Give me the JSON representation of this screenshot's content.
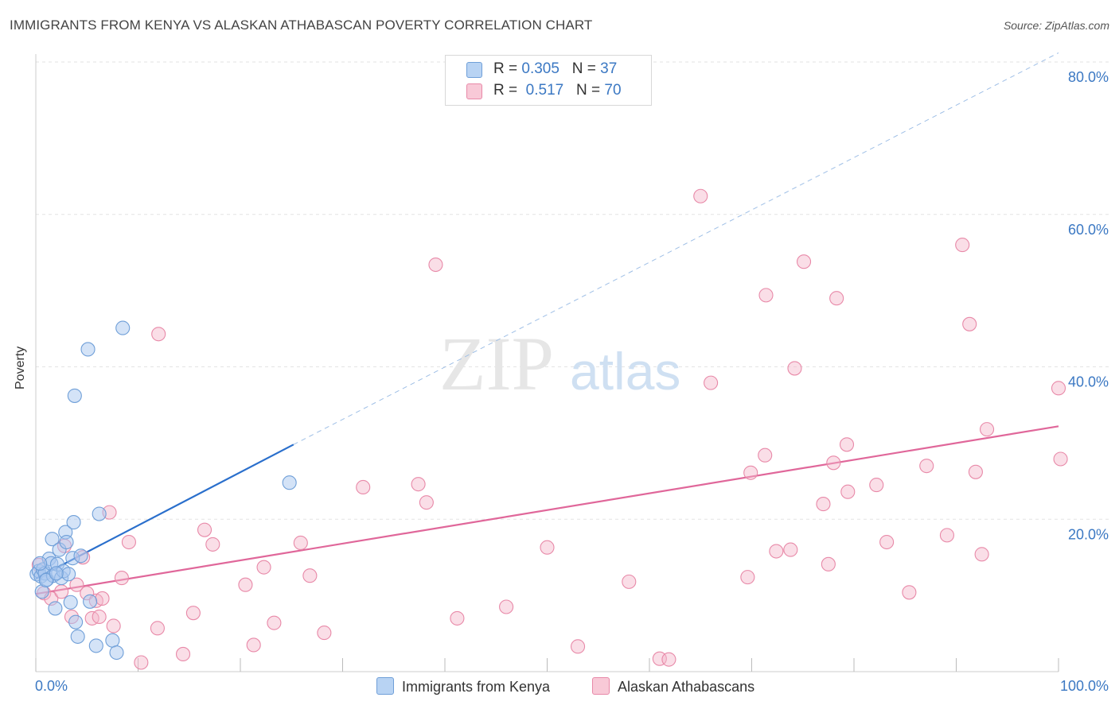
{
  "title": "IMMIGRANTS FROM KENYA VS ALASKAN ATHABASCAN POVERTY CORRELATION CHART",
  "source": "Source: ZipAtlas.com",
  "watermark": {
    "zip": "ZIP",
    "atlas": "atlas"
  },
  "colors": {
    "blue_fill": "#a9c8f0",
    "blue_stroke": "#6f9fd8",
    "blue_line": "#2a6fcc",
    "pink_fill": "#f5b6c9",
    "pink_stroke": "#e889a8",
    "pink_line": "#e0679a",
    "axis_label": "#3b78c3",
    "grid": "#e3e3e3"
  },
  "legend": {
    "rows": [
      {
        "r_label": "R = ",
        "r_value": "0.305",
        "n_label": "N = ",
        "n_value": "37"
      },
      {
        "r_label": "R = ",
        "r_value": "0.517",
        "n_label": "N = ",
        "n_value": "70"
      }
    ]
  },
  "bottom_legend": [
    "Immigrants from Kenya",
    "Alaskan Athabascans"
  ],
  "chart_data": {
    "type": "scatter",
    "ylabel": "Poverty",
    "xlim": [
      0,
      100
    ],
    "ylim": [
      0,
      80
    ],
    "x_tick_labels": [
      "0.0%",
      "100.0%"
    ],
    "y_tick_labels": [
      "20.0%",
      "40.0%",
      "60.0%",
      "80.0%"
    ],
    "y_ticks": [
      20,
      40,
      60,
      80
    ],
    "grid": true,
    "legend_position": "top-center",
    "series": [
      {
        "name": "Immigrants from Kenya",
        "color": "blue",
        "trend": {
          "x0": 0,
          "y0": 12.2,
          "x1": 25.2,
          "y1": 29.8,
          "dashed_to_x": 100,
          "dashed_to_y": 81.2
        },
        "points": [
          [
            0.1,
            12.8
          ],
          [
            0.3,
            13.2
          ],
          [
            0.5,
            12.5
          ],
          [
            0.7,
            13.4
          ],
          [
            0.9,
            12.9
          ],
          [
            1.1,
            12.1
          ],
          [
            1.3,
            14.8
          ],
          [
            1.5,
            14.2
          ],
          [
            1.6,
            17.4
          ],
          [
            1.7,
            12.6
          ],
          [
            1.9,
            8.3
          ],
          [
            2.1,
            14.1
          ],
          [
            2.3,
            16.0
          ],
          [
            2.5,
            12.3
          ],
          [
            2.7,
            13.2
          ],
          [
            2.9,
            18.3
          ],
          [
            3.0,
            17.0
          ],
          [
            3.2,
            12.8
          ],
          [
            3.4,
            9.1
          ],
          [
            3.6,
            14.9
          ],
          [
            3.7,
            19.6
          ],
          [
            3.8,
            36.2
          ],
          [
            3.9,
            6.5
          ],
          [
            4.1,
            4.6
          ],
          [
            4.4,
            15.2
          ],
          [
            5.1,
            42.3
          ],
          [
            5.3,
            9.2
          ],
          [
            5.9,
            3.4
          ],
          [
            6.2,
            20.7
          ],
          [
            7.5,
            4.1
          ],
          [
            7.9,
            2.5
          ],
          [
            8.5,
            45.1
          ],
          [
            24.8,
            24.8
          ],
          [
            0.6,
            10.5
          ],
          [
            1.0,
            12.0
          ],
          [
            0.4,
            14.2
          ],
          [
            2.0,
            12.9
          ]
        ]
      },
      {
        "name": "Alaskan Athabascans",
        "color": "pink",
        "trend": {
          "x0": 0,
          "y0": 10.2,
          "x1": 100,
          "y1": 32.2
        },
        "points": [
          [
            0.3,
            14.0
          ],
          [
            0.8,
            10.3
          ],
          [
            1.5,
            9.6
          ],
          [
            2.5,
            10.5
          ],
          [
            2.8,
            16.5
          ],
          [
            3.5,
            7.2
          ],
          [
            4.0,
            11.4
          ],
          [
            4.6,
            15.0
          ],
          [
            5.0,
            10.3
          ],
          [
            5.5,
            7.0
          ],
          [
            5.9,
            9.3
          ],
          [
            6.2,
            7.2
          ],
          [
            6.5,
            9.6
          ],
          [
            7.2,
            20.9
          ],
          [
            7.6,
            6.0
          ],
          [
            8.4,
            12.3
          ],
          [
            9.1,
            17.0
          ],
          [
            10.3,
            1.2
          ],
          [
            11.9,
            5.7
          ],
          [
            12.0,
            44.3
          ],
          [
            14.4,
            2.3
          ],
          [
            15.4,
            7.7
          ],
          [
            16.5,
            18.6
          ],
          [
            17.3,
            16.7
          ],
          [
            20.5,
            11.4
          ],
          [
            21.3,
            3.5
          ],
          [
            22.3,
            13.7
          ],
          [
            23.3,
            6.4
          ],
          [
            25.9,
            16.9
          ],
          [
            26.8,
            12.6
          ],
          [
            28.2,
            5.1
          ],
          [
            32.0,
            24.2
          ],
          [
            37.4,
            24.6
          ],
          [
            38.2,
            22.2
          ],
          [
            39.1,
            53.4
          ],
          [
            41.2,
            7.0
          ],
          [
            50.0,
            16.3
          ],
          [
            53.0,
            3.3
          ],
          [
            58.0,
            11.8
          ],
          [
            61.0,
            1.7
          ],
          [
            61.9,
            1.6
          ],
          [
            65.0,
            62.4
          ],
          [
            66.0,
            37.9
          ],
          [
            69.6,
            12.4
          ],
          [
            69.9,
            26.1
          ],
          [
            71.3,
            28.4
          ],
          [
            71.4,
            49.4
          ],
          [
            72.4,
            15.8
          ],
          [
            73.8,
            16.0
          ],
          [
            74.2,
            39.8
          ],
          [
            75.1,
            53.8
          ],
          [
            77.0,
            22.0
          ],
          [
            77.5,
            14.1
          ],
          [
            78.0,
            27.4
          ],
          [
            78.3,
            49.0
          ],
          [
            79.3,
            29.8
          ],
          [
            79.4,
            23.6
          ],
          [
            82.2,
            24.5
          ],
          [
            83.2,
            17.0
          ],
          [
            85.4,
            10.4
          ],
          [
            87.1,
            27.0
          ],
          [
            89.1,
            17.9
          ],
          [
            90.6,
            56.0
          ],
          [
            91.3,
            45.6
          ],
          [
            91.9,
            26.2
          ],
          [
            92.5,
            15.4
          ],
          [
            93.0,
            31.8
          ],
          [
            100.0,
            37.2
          ],
          [
            100.2,
            27.9
          ],
          [
            46.0,
            8.5
          ]
        ]
      }
    ]
  }
}
